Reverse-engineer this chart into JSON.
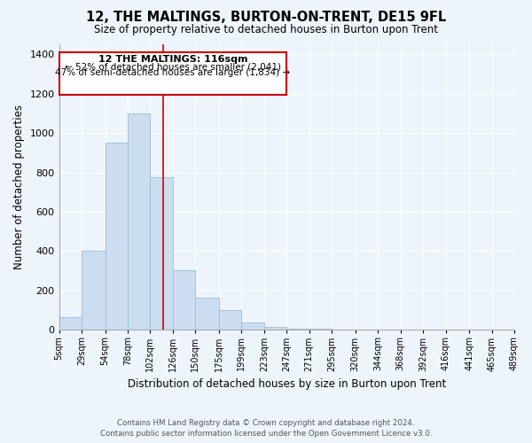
{
  "title": "12, THE MALTINGS, BURTON-ON-TRENT, DE15 9FL",
  "subtitle": "Size of property relative to detached houses in Burton upon Trent",
  "xlabel": "Distribution of detached houses by size in Burton upon Trent",
  "ylabel": "Number of detached properties",
  "bar_color": "#ccddf0",
  "bar_edge_color": "#9bbdd8",
  "vline_x": 116,
  "vline_color": "#cc0000",
  "bin_edges": [
    5,
    29,
    54,
    78,
    102,
    126,
    150,
    175,
    199,
    223,
    247,
    271,
    295,
    320,
    344,
    368,
    392,
    416,
    441,
    465,
    489
  ],
  "bin_labels": [
    "5sqm",
    "29sqm",
    "54sqm",
    "78sqm",
    "102sqm",
    "126sqm",
    "150sqm",
    "175sqm",
    "199sqm",
    "223sqm",
    "247sqm",
    "271sqm",
    "295sqm",
    "320sqm",
    "344sqm",
    "368sqm",
    "392sqm",
    "416sqm",
    "441sqm",
    "465sqm",
    "489sqm"
  ],
  "counts": [
    65,
    400,
    950,
    1100,
    775,
    305,
    165,
    100,
    38,
    15,
    8,
    5,
    3,
    2,
    1,
    0,
    0,
    0,
    0,
    0
  ],
  "ylim": [
    0,
    1450
  ],
  "yticks": [
    0,
    200,
    400,
    600,
    800,
    1000,
    1200,
    1400
  ],
  "annotation_title": "12 THE MALTINGS: 116sqm",
  "annotation_line1": "← 52% of detached houses are smaller (2,041)",
  "annotation_line2": "47% of semi-detached houses are larger (1,834) →",
  "footer_line1": "Contains HM Land Registry data © Crown copyright and database right 2024.",
  "footer_line2": "Contains public sector information licensed under the Open Government Licence v3.0.",
  "background_color": "#eef4fb",
  "plot_bg_color": "#eef4fb",
  "grid_color": "#ffffff"
}
